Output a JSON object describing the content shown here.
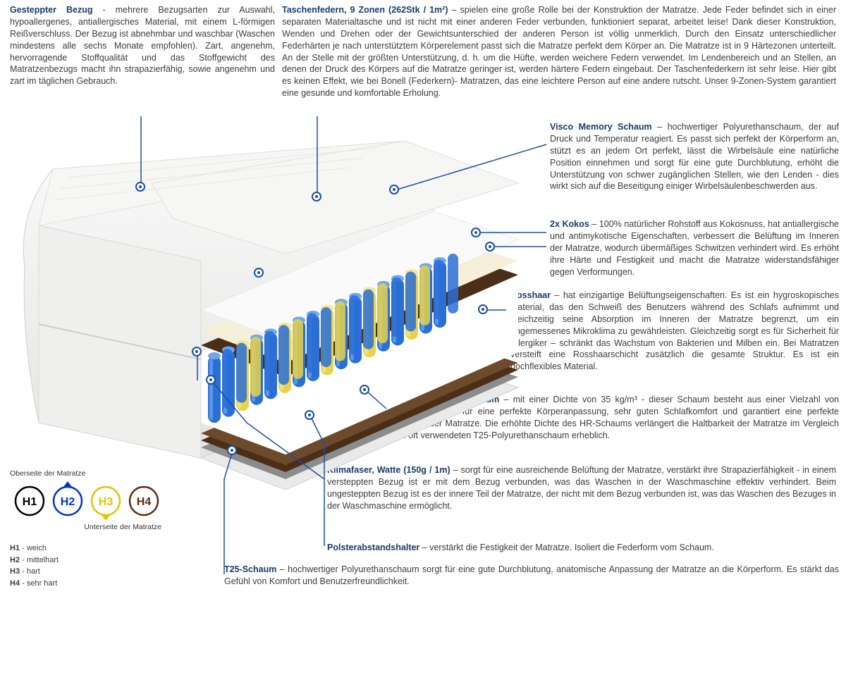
{
  "colors": {
    "title": "#1b3a6b",
    "text": "#3c3c3c",
    "leader": "#1b4fa0",
    "h1": "#000000",
    "h2": "#0033cc",
    "h3": "#e6c200",
    "h4": "#5a2e10"
  },
  "cover": {
    "title": "Gesteppter Bezug",
    "sep": " - ",
    "body": "mehrere Bezugsarten zur Auswahl, hypoallergenes, antiallergisches Material, mit einem L-förmigen Reißverschluss. Der Bezug ist abnehmbar und waschbar (Waschen mindestens alle sechs Monate empfohlen). Zart, angenehm, hervorragende Stoffqualität und das Stoffgewicht des Matratzenbezugs macht ihn strapazierfähig, sowie angenehm und zart im täglichen Gebrauch."
  },
  "springs": {
    "title": "Taschenfedern, 9 Zonen (262Stk / 1m²)",
    "sep": " – ",
    "body": "spielen eine große Rolle bei der Konstruktion der Matratze. Jede Feder befindet sich in einer separaten Materialtasche und ist nicht mit einer anderen Feder verbunden, funktioniert separat, arbeitet leise! Dank dieser Konstruktion, Wenden und Drehen oder der Gewichtsunterschied der anderen Person ist völlig unmerklich. Durch den Einsatz unterschiedlicher Federhärten je nach unterstütztem Körperelement passt sich die Matratze perfekt dem Körper an. Die Matratze ist in 9 Härtezonen unterteilt. An der Stelle mit der größten Unterstützung, d. h. um die Hüfte, werden weichere Federn verwendet. Im Lendenbereich und an Stellen, an denen der Druck des Körpers auf die Matratze geringer ist, werden härtere Federn eingebaut. Der Taschenfederkern ist sehr leise. Hier gibt es keinen Effekt, wie bei Bonell (Federkern)- Matratzen, das eine leichtere Person auf eine andere rutscht. Unser 9-Zonen-System garantiert eine gesunde und komfortable Erholung."
  },
  "visco": {
    "title": "Visco Memory Schaum",
    "sep": " – ",
    "body": "hochwertiger Polyurethanschaum, der auf Druck und Temperatur reagiert. Es passt sich perfekt der Körperform an, stützt es an jedem Ort perfekt, lässt die Wirbelsäule eine natürliche Position einnehmen und sorgt für eine gute Durchblutung, erhöht die Unterstützung von schwer zugänglichen Stellen, wie den Lenden - dies wirkt sich auf die Beseitigung einiger Wirbelsäulenbeschwerden aus."
  },
  "kokos": {
    "title": "2x Kokos",
    "sep": " – ",
    "body": "100% natürlicher Rohstoff aus Kokosnuss, hat antiallergische und antimykotische Eigenschaften, verbessert die Belüftung im Inneren der Matratze, wodurch übermäßiges Schwitzen verhindert wird. Es erhöht ihre Härte und Festigkeit und macht die Matratze widerstandsfähiger gegen Verformungen."
  },
  "rosshaar": {
    "title": "Rosshaar",
    "sep": " – ",
    "body": "hat einzigartige Belüftungseigenschaften. Es ist ein hygroskopisches Material, das den Schweiß des Benutzers während des Schlafs aufnimmt und gleichzeitig seine Absorption im Inneren der Matratze begrenzt, um ein angemessenes Mikroklima zu gewährleisten. Gleichzeitig sorgt es für Sicherheit für Allergiker – schränkt das Wachstum von Bakterien und Milben ein. Bei Matratzen versteift eine Rosshaarschicht zusätzlich die gesamte Struktur. Es ist ein hochflexibles Material."
  },
  "hr": {
    "title": "Hochflexibler HR-Schaum",
    "sep": " – ",
    "body": "mit einer Dichte von 35 kg/m³ - dieser Schaum besteht aus einer Vielzahl von Luftblasen, sorgt für eine perfekte Körperanpassung, sehr guten Schlafkomfort und garantiert eine perfekte Belüftung der Matratze. Die erhöhte Dichte des HR-Schaums verlängert die Haltbarkeit der Matratze im Vergleich zum oft verwendeten T25-Polyurethanschaum erheblich."
  },
  "klima": {
    "title": "Klimafaser, Watte (150g / 1m)",
    "sep": " – ",
    "body": "sorgt für eine ausreichende Belüftung der Matratze, verstärkt ihre Strapazierfähigkeit - in einem versteppten Bezug ist er mit dem Bezug verbunden, was das Waschen in der Waschmaschine effektiv verhindert. Beim ungesteppten Bezug ist es der innere Teil der Matratze, der nicht mit dem Bezug verbunden ist, was das Waschen des Bezuges in der Waschmaschine ermöglicht."
  },
  "polster": {
    "title": "Polsterabstandshalter",
    "sep": " – ",
    "body": "verstärkt die Festigkeit der Matratze. Isoliert die Federform vom Schaum."
  },
  "t25": {
    "title": "T25-Schaum",
    "sep": " – ",
    "body": "hochwertiger Polyurethanschaum sorgt für eine gute Durchblutung, anatomische Anpassung der Matratze an die Körperform. Es stärkt das Gefühl von Komfort und Benutzerfreundlichkeit."
  },
  "legend": {
    "top_label": "Oberseite der Matratze",
    "bottom_label": "Unterseite der Matratze",
    "items": [
      {
        "code": "H1",
        "name": "weich"
      },
      {
        "code": "H2",
        "name": "mittelhart"
      },
      {
        "code": "H3",
        "name": "hart"
      },
      {
        "code": "H4",
        "name": "sehr hart"
      }
    ]
  },
  "mattress_style": {
    "cover_color": "#f2f2f0",
    "cover_shadow": "#d8d8d6",
    "foam_cream": "#f6f0d8",
    "foam_white": "#fafafa",
    "coco_brown": "#4a2e18",
    "rosshaar": "#6d4a2c",
    "felt_grey": "#8c8c8c",
    "base_foam": "#eaeaea",
    "spring_blue": "#2a6fd6",
    "spring_blue_light": "#6ea8f0",
    "spring_yellow": "#e8d24a",
    "spring_yellow_light": "#f5e890",
    "mat_blue": "#a8c8f0"
  }
}
